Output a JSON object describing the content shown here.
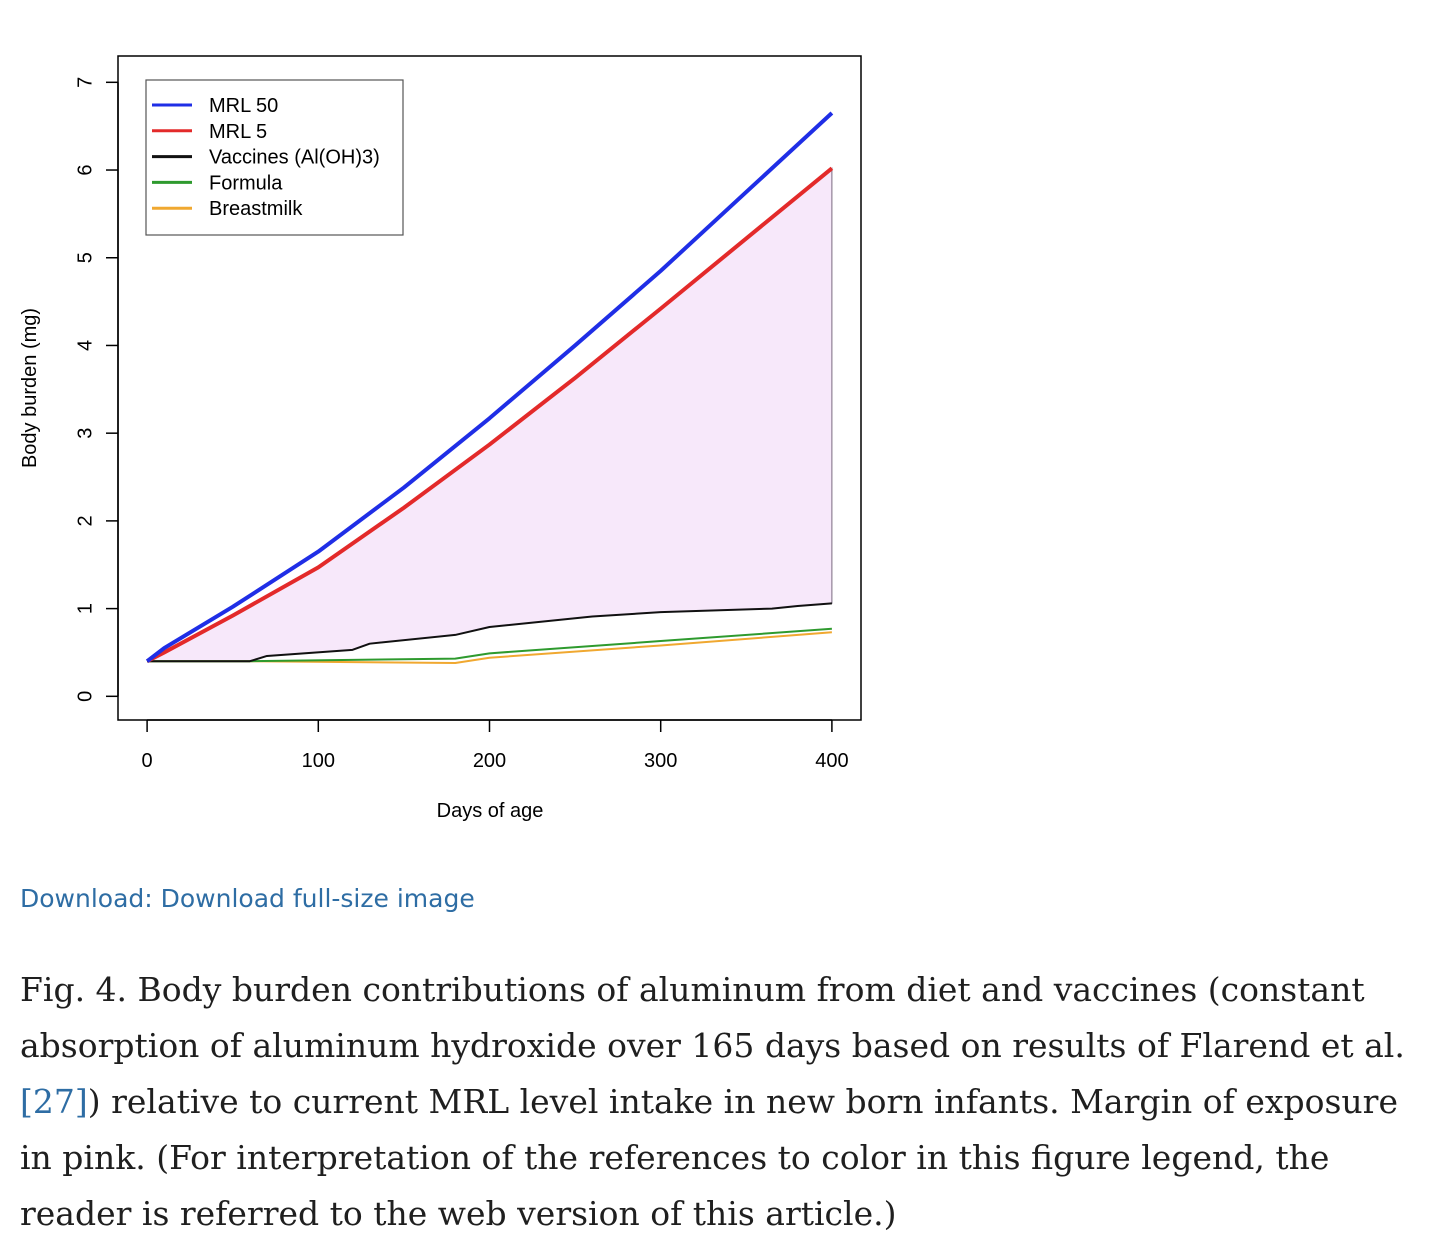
{
  "chart_data": {
    "type": "line",
    "title": "",
    "xlabel": "Days of age",
    "ylabel": "Body burden (mg)",
    "xlim": [
      -17,
      417
    ],
    "ylim": [
      -0.27,
      7.3
    ],
    "x_ticks": [
      0,
      100,
      200,
      300,
      400
    ],
    "y_ticks": [
      0,
      1,
      2,
      3,
      4,
      5,
      6,
      7
    ],
    "grid": false,
    "legend_position": "top-left",
    "shaded_region": {
      "between": [
        "MRL 5",
        "Vaccines (Al(OH)3)"
      ],
      "color": "#f7e8fa",
      "label": "Margin of exposure"
    },
    "series": [
      {
        "name": "MRL 50",
        "color": "#1f2ee6",
        "x": [
          0,
          10,
          50,
          100,
          150,
          200,
          250,
          300,
          350,
          400
        ],
        "y": [
          0.4,
          0.55,
          1.02,
          1.65,
          2.38,
          3.17,
          4.0,
          4.85,
          5.75,
          6.65
        ]
      },
      {
        "name": "MRL 5",
        "color": "#e32a2a",
        "x": [
          0,
          10,
          50,
          100,
          150,
          200,
          250,
          300,
          350,
          400
        ],
        "y": [
          0.4,
          0.5,
          0.92,
          1.47,
          2.15,
          2.87,
          3.63,
          4.42,
          5.22,
          6.02
        ]
      },
      {
        "name": "Vaccines (Al(OH)3)",
        "color": "#111111",
        "x": [
          0,
          60,
          70,
          120,
          130,
          180,
          200,
          260,
          300,
          365,
          380,
          400
        ],
        "y": [
          0.4,
          0.4,
          0.46,
          0.53,
          0.6,
          0.7,
          0.79,
          0.91,
          0.96,
          1.0,
          1.03,
          1.06
        ]
      },
      {
        "name": "Formula",
        "color": "#2e9a2e",
        "x": [
          0,
          60,
          180,
          200,
          300,
          400
        ],
        "y": [
          0.4,
          0.4,
          0.43,
          0.49,
          0.63,
          0.77
        ]
      },
      {
        "name": "Breastmilk",
        "color": "#f0a830",
        "x": [
          0,
          60,
          180,
          200,
          300,
          400
        ],
        "y": [
          0.4,
          0.4,
          0.38,
          0.44,
          0.58,
          0.73
        ]
      }
    ]
  },
  "download": {
    "label": "Download: Download full-size image"
  },
  "caption": {
    "text_before": "Fig. 4. Body burden contributions of aluminum from diet and vaccines (constant absorption of aluminum hydroxide over 165 days based on results of Flarend et al. ",
    "ref": "[27]",
    "text_after": ") relative to current MRL level intake in new born infants. Margin of exposure in pink. (For interpretation of the references to color in this figure legend, the reader is referred to the web version of this article.)"
  }
}
